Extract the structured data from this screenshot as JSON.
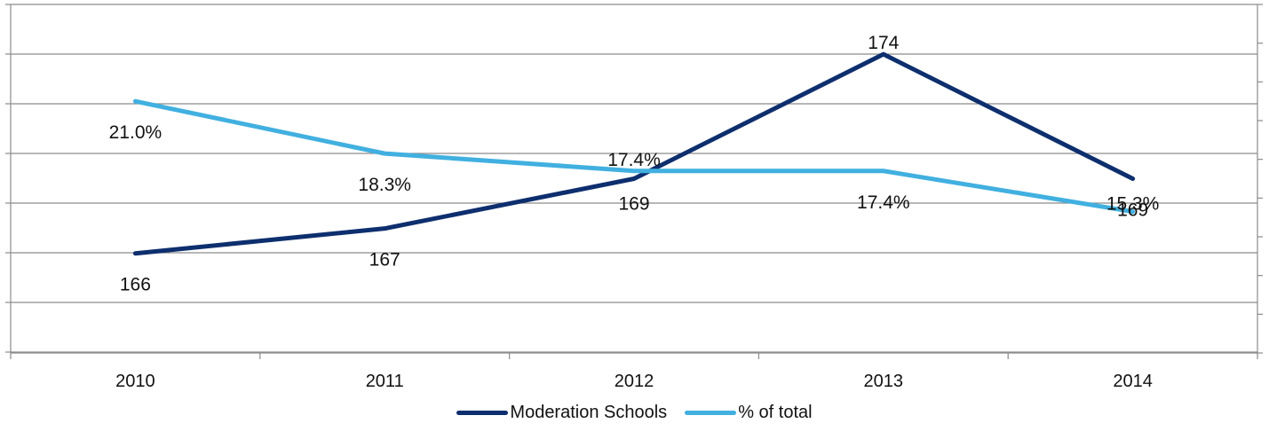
{
  "chart_data": {
    "type": "line",
    "categories": [
      "2010",
      "2011",
      "2012",
      "2013",
      "2014"
    ],
    "series": [
      {
        "name": "Moderation Schools",
        "axis": "left",
        "color": "#0e2f6e",
        "values": [
          166,
          167,
          169,
          174,
          169
        ],
        "labels": [
          "166",
          "167",
          "169",
          "174",
          "169"
        ]
      },
      {
        "name": "% of total",
        "axis": "right",
        "color": "#41b0e0",
        "values": [
          21.0,
          18.3,
          17.4,
          17.4,
          15.3
        ],
        "labels": [
          "21.0%",
          "18.3%",
          "17.4%",
          "17.4%",
          "15.3%"
        ]
      }
    ],
    "y_left": {
      "min": 162,
      "max": 176
    },
    "y_right": {
      "min": 8.0,
      "max": 26.0
    },
    "grid": true,
    "legend": "bottom"
  }
}
